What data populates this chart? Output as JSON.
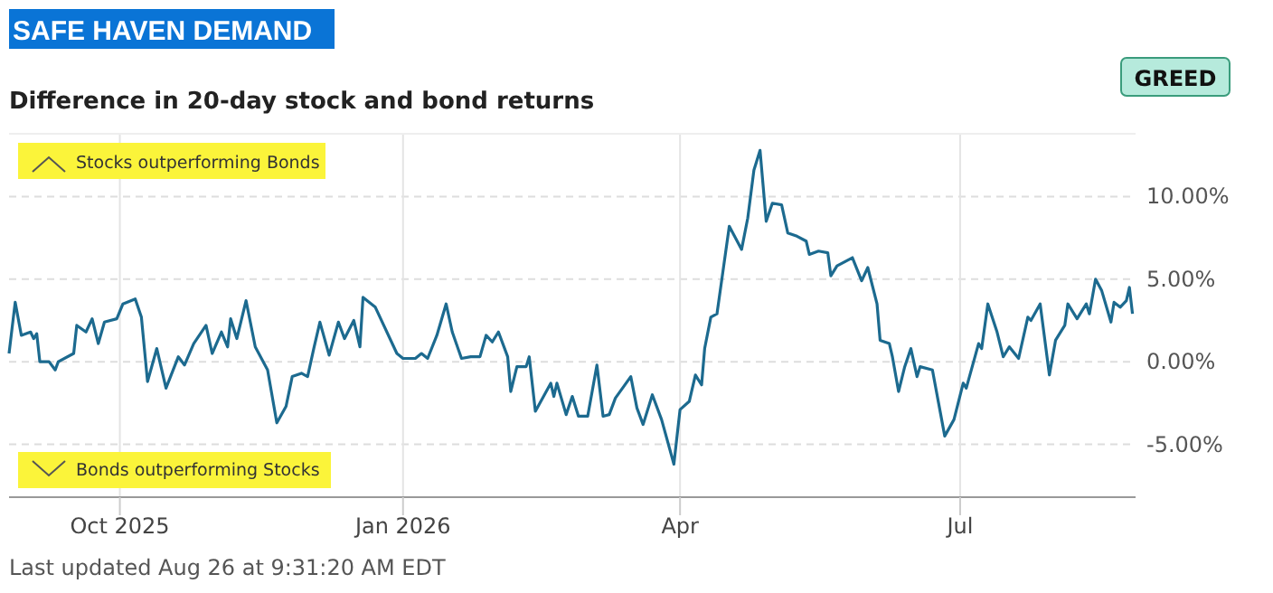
{
  "chart_data": {
    "type": "line",
    "title": "SAFE HAVEN DEMAND",
    "subtitle": "Difference in 20-day stock and bond returns",
    "annotations": [
      "GREED",
      "Stocks outperforming Bonds",
      "Bonds outperforming Stocks",
      "Last updated Aug 26 at 9:31:20 AM EDT"
    ],
    "xlim": [
      "2025-08-26",
      "2026-08-27"
    ],
    "xticks": [
      {
        "value": "2025-10-01",
        "label": "Oct 2025"
      },
      {
        "value": "2026-01-01",
        "label": "Jan 2026"
      },
      {
        "value": "2026-04-01",
        "label": "Apr"
      },
      {
        "value": "2026-07-01",
        "label": "Jul"
      }
    ],
    "ylim": [
      -8.2,
      13.8
    ],
    "yticks": [
      {
        "value": -5,
        "label": "-5.00%"
      },
      {
        "value": 0,
        "label": "0.00%"
      },
      {
        "value": 5,
        "label": "5.00%"
      },
      {
        "value": 10,
        "label": "10.00%"
      }
    ],
    "grid": true,
    "marker": "none",
    "line_style": "solid",
    "series": [
      {
        "color": "#1c6a8f",
        "x": [
          "2025-08-26",
          "2025-08-28",
          "2025-08-30",
          "2025-09-02",
          "2025-09-03",
          "2025-09-04",
          "2025-09-05",
          "2025-09-08",
          "2025-09-10",
          "2025-09-11",
          "2025-09-16",
          "2025-09-17",
          "2025-09-20",
          "2025-09-22",
          "2025-09-24",
          "2025-09-26",
          "2025-09-30",
          "2025-10-02",
          "2025-10-06",
          "2025-10-08",
          "2025-10-10",
          "2025-10-13",
          "2025-10-16",
          "2025-10-20",
          "2025-10-22",
          "2025-10-25",
          "2025-10-29",
          "2025-10-31",
          "2025-11-03",
          "2025-11-05",
          "2025-11-06",
          "2025-11-08",
          "2025-11-11",
          "2025-11-14",
          "2025-11-18",
          "2025-11-21",
          "2025-11-24",
          "2025-11-26",
          "2025-11-29",
          "2025-12-01",
          "2025-12-03",
          "2025-12-05",
          "2025-12-08",
          "2025-12-11",
          "2025-12-13",
          "2025-12-16",
          "2025-12-18",
          "2025-12-19",
          "2025-12-23",
          "2025-12-30",
          "2026-01-01",
          "2026-01-05",
          "2026-01-07",
          "2026-01-09",
          "2026-01-12",
          "2026-01-15",
          "2026-01-17",
          "2026-01-20",
          "2026-01-23",
          "2026-01-26",
          "2026-01-28",
          "2026-01-30",
          "2026-02-01",
          "2026-02-04",
          "2026-02-05",
          "2026-02-07",
          "2026-02-10",
          "2026-02-11",
          "2026-02-13",
          "2026-02-18",
          "2026-02-19",
          "2026-02-20",
          "2026-02-23",
          "2026-02-25",
          "2026-02-27",
          "2026-03-02",
          "2026-03-05",
          "2026-03-07",
          "2026-03-09",
          "2026-03-11",
          "2026-03-16",
          "2026-03-18",
          "2026-03-20",
          "2026-03-23",
          "2026-03-26",
          "2026-03-30",
          "2026-04-01",
          "2026-04-04",
          "2026-04-06",
          "2026-04-08",
          "2026-04-09",
          "2026-04-11",
          "2026-04-13",
          "2026-04-17",
          "2026-04-21",
          "2026-04-23",
          "2026-04-25",
          "2026-04-27",
          "2026-04-29",
          "2026-05-01",
          "2026-05-04",
          "2026-05-06",
          "2026-05-09",
          "2026-05-12",
          "2026-05-13",
          "2026-05-16",
          "2026-05-19",
          "2026-05-20",
          "2026-05-22",
          "2026-05-27",
          "2026-05-30",
          "2026-06-01",
          "2026-06-04",
          "2026-06-05",
          "2026-06-08",
          "2026-06-09",
          "2026-06-11",
          "2026-06-13",
          "2026-06-15",
          "2026-06-17",
          "2026-06-18",
          "2026-06-22",
          "2026-06-24",
          "2026-06-26",
          "2026-06-29",
          "2026-07-02",
          "2026-07-03",
          "2026-07-07",
          "2026-07-08",
          "2026-07-10",
          "2026-07-13",
          "2026-07-15",
          "2026-07-17",
          "2026-07-20",
          "2026-07-23",
          "2026-07-24",
          "2026-07-27",
          "2026-07-30",
          "2026-08-01",
          "2026-08-04",
          "2026-08-05",
          "2026-08-08",
          "2026-08-11",
          "2026-08-12",
          "2026-08-14",
          "2026-08-16",
          "2026-08-19",
          "2026-08-20",
          "2026-08-22",
          "2026-08-24",
          "2026-08-25",
          "2026-08-26"
        ],
        "values": [
          0.5,
          3.6,
          1.6,
          1.8,
          1.4,
          1.7,
          0,
          0,
          -0.5,
          0,
          0.5,
          2.2,
          1.8,
          2.6,
          1.1,
          2.4,
          2.6,
          3.5,
          3.8,
          2.7,
          -1.2,
          0.8,
          -1.6,
          0.3,
          -0.2,
          1.1,
          2.2,
          0.5,
          1.8,
          0.9,
          2.6,
          1.4,
          3.7,
          0.9,
          -0.5,
          -3.7,
          -2.7,
          -0.9,
          -0.7,
          -0.9,
          0.8,
          2.4,
          0.4,
          2.4,
          1.4,
          2.5,
          0.9,
          3.9,
          3.3,
          0.5,
          0.2,
          0.2,
          0.5,
          0.2,
          1.6,
          3.5,
          1.8,
          0.2,
          0.3,
          0.3,
          1.6,
          1.2,
          1.8,
          0.3,
          -1.8,
          -0.3,
          -0.3,
          0.3,
          -3.0,
          -1.3,
          -2.1,
          -1.3,
          -3.2,
          -2.1,
          -3.3,
          -3.3,
          -0.2,
          -3.3,
          -3.2,
          -2.2,
          -0.9,
          -2.8,
          -3.8,
          -2.0,
          -3.5,
          -6.2,
          -2.9,
          -2.4,
          -0.8,
          -1.4,
          0.8,
          2.7,
          2.9,
          8.2,
          6.8,
          8.7,
          11.6,
          12.8,
          8.5,
          9.6,
          9.5,
          7.8,
          7.6,
          7.3,
          6.5,
          6.7,
          6.6,
          5.2,
          5.8,
          6.3,
          4.9,
          5.7,
          3.5,
          1.3,
          1.1,
          0.3,
          -1.8,
          -0.3,
          0.8,
          -0.9,
          -0.3,
          -0.5,
          -2.5,
          -4.5,
          -3.5,
          -1.3,
          -1.6,
          1.1,
          0.8,
          3.5,
          1.8,
          0.3,
          0.9,
          0.2,
          2.7,
          2.5,
          3.5,
          -0.8,
          1.3,
          2.2,
          3.5,
          2.6,
          3.5,
          2.9,
          5.0,
          4.3,
          2.4,
          3.6,
          3.3,
          3.7,
          4.5,
          2.9
        ]
      }
    ]
  }
}
